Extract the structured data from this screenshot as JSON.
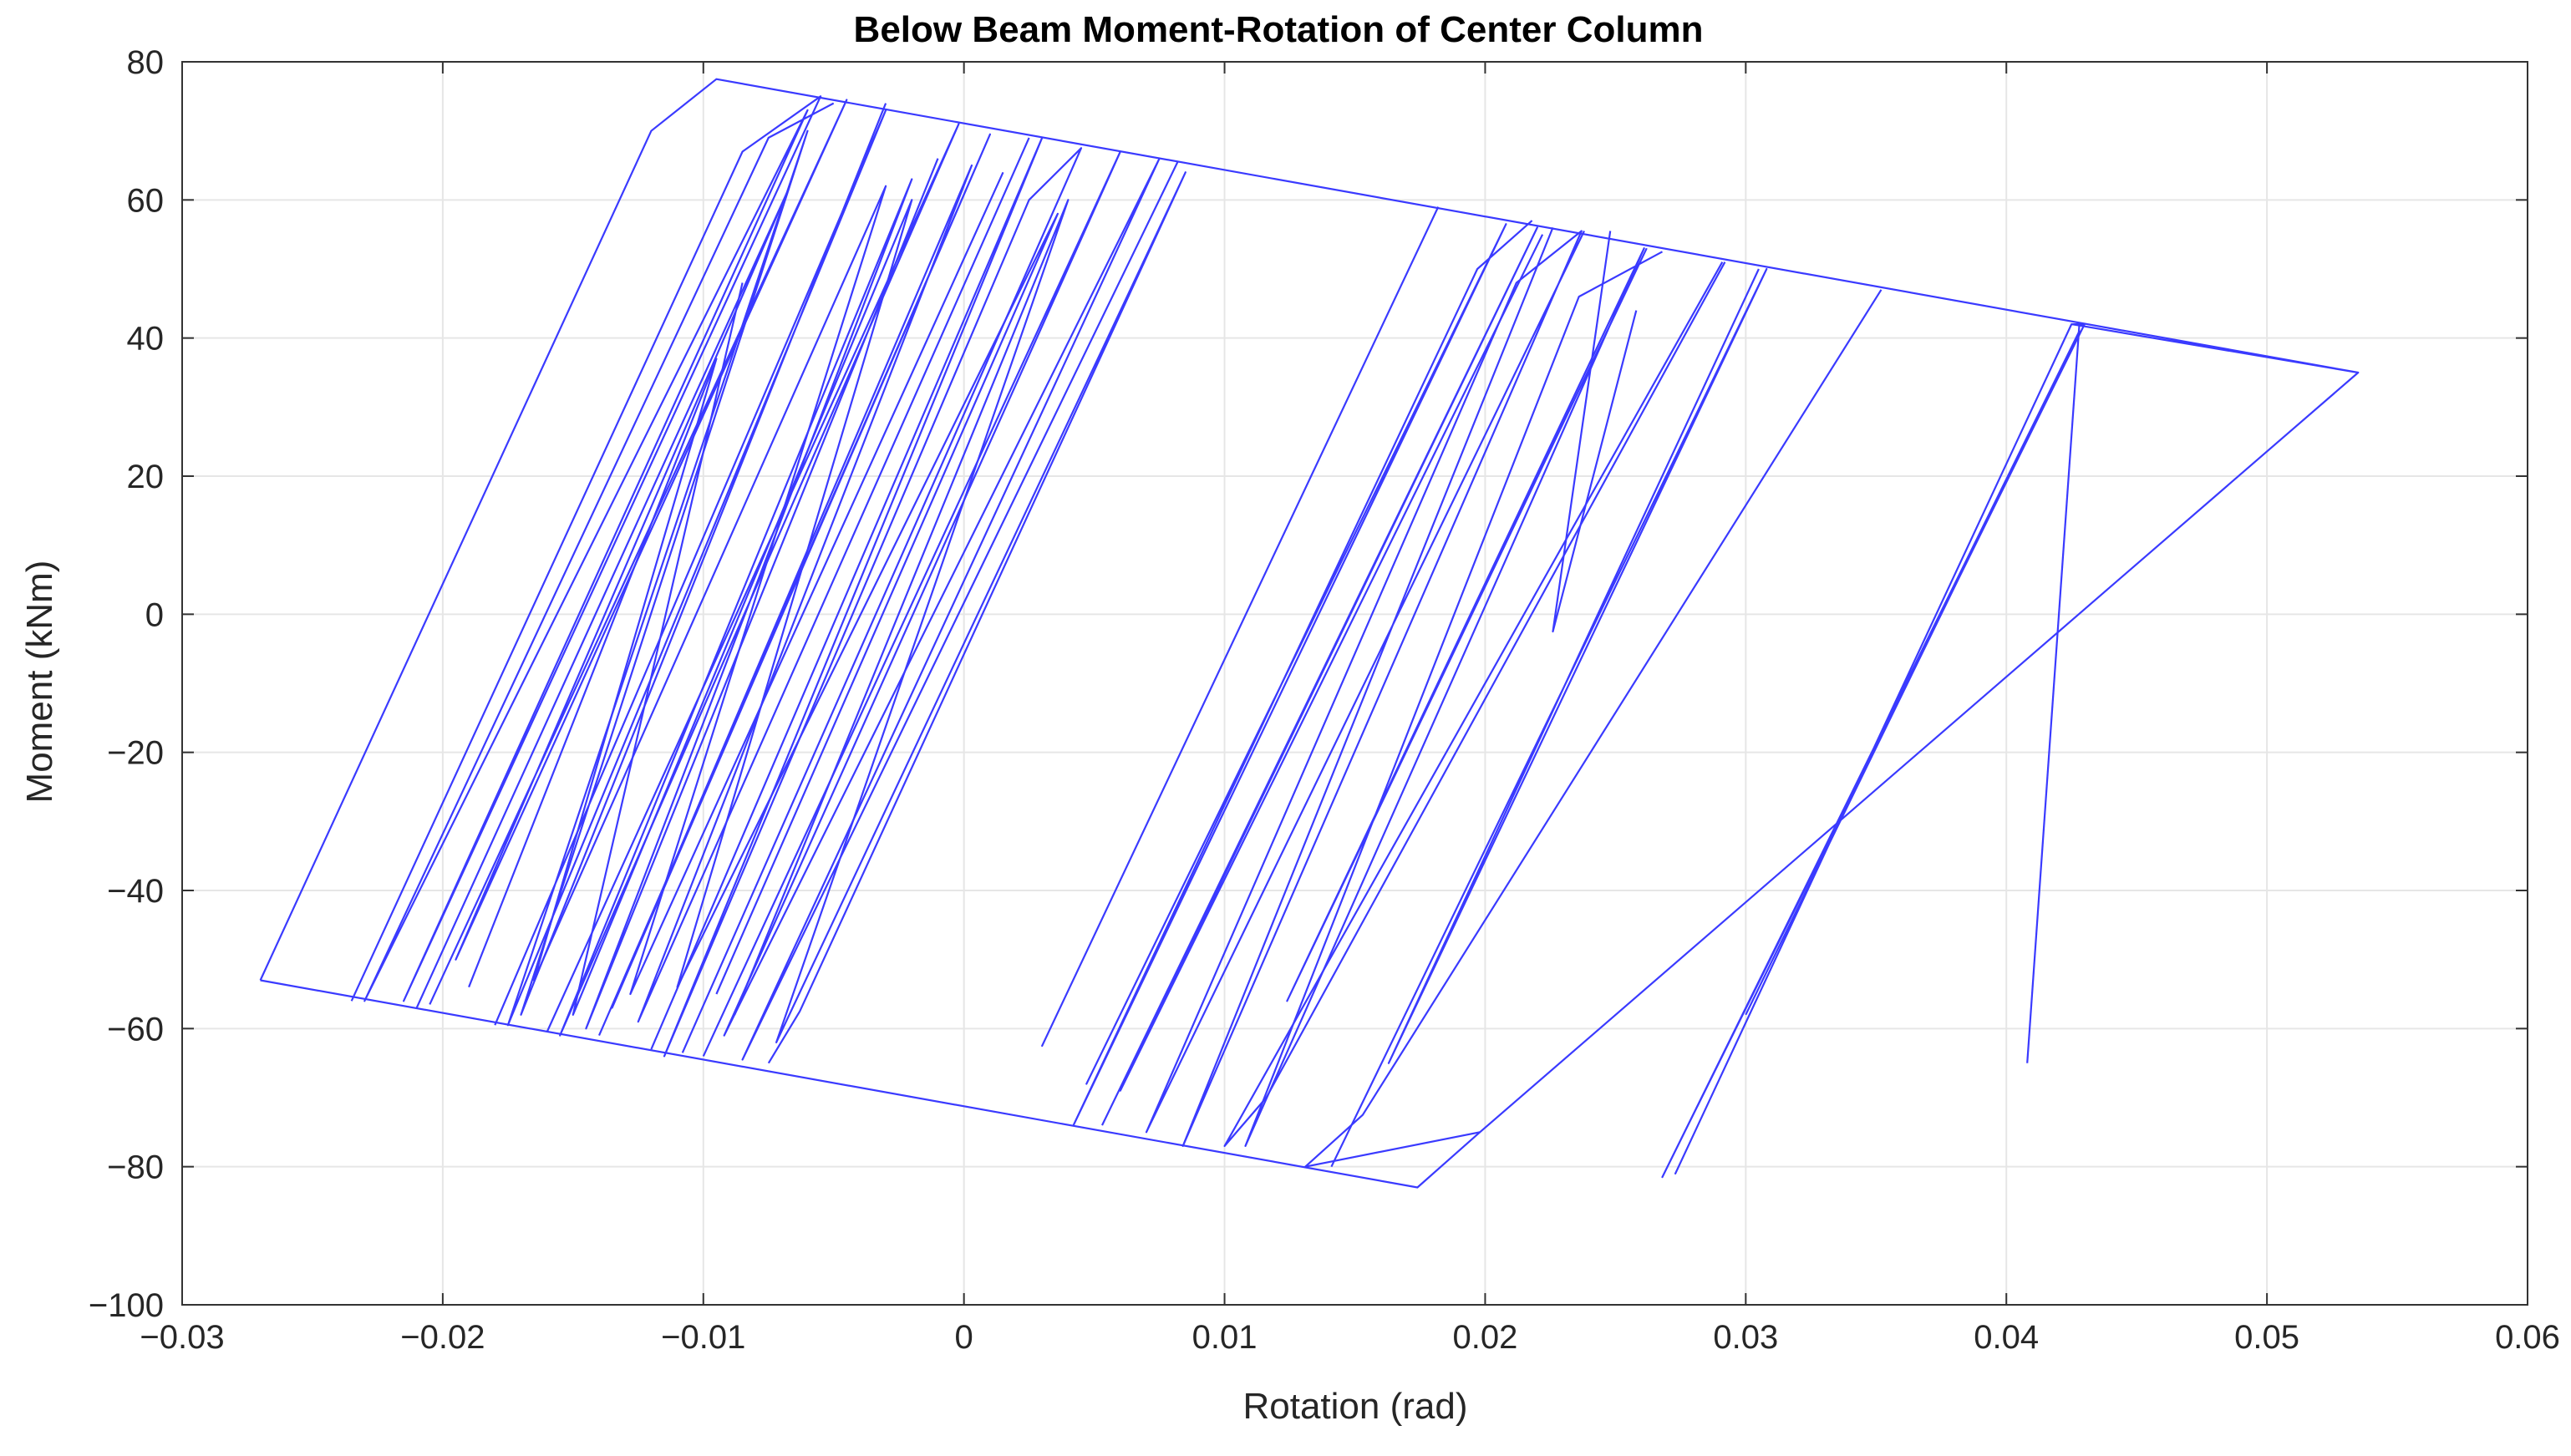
{
  "chart_data": {
    "type": "line",
    "title": "Below Beam Moment-Rotation of Center Column",
    "xlabel": "Rotation (rad)",
    "ylabel": "Moment (kNm)",
    "xlim": [
      -0.03,
      0.06
    ],
    "ylim": [
      -100,
      80
    ],
    "xticks": [
      -0.03,
      -0.02,
      -0.01,
      0,
      0.01,
      0.02,
      0.03,
      0.04,
      0.05,
      0.06
    ],
    "xtick_labels": [
      "−0.03",
      "−0.02",
      "−0.01",
      "0",
      "0.01",
      "0.02",
      "0.03",
      "0.04",
      "0.05",
      "0.06"
    ],
    "yticks": [
      -100,
      -80,
      -60,
      -40,
      -20,
      0,
      20,
      40,
      60,
      80
    ],
    "ytick_labels": [
      "−100",
      "−80",
      "−60",
      "−40",
      "−20",
      "0",
      "20",
      "40",
      "60",
      "80"
    ],
    "grid": true,
    "legend": "none",
    "line_color": "#3a3aff",
    "series": [
      {
        "values": [
          [
            -0.027,
            -53
          ],
          [
            -0.012,
            70
          ],
          [
            -0.0095,
            77.5
          ],
          [
            0.0535,
            35
          ],
          [
            0.0425,
            42
          ],
          [
            0.0273,
            -81
          ],
          [
            0.0425,
            42
          ],
          [
            0.043,
            42
          ],
          [
            0.0268,
            -81.5
          ],
          [
            0.0428,
            41
          ],
          [
            0.03,
            -58
          ]
        ]
      },
      {
        "values": [
          [
            0.0535,
            35
          ],
          [
            0.0198,
            -75
          ],
          [
            0.0174,
            -83
          ],
          [
            -0.027,
            -53
          ]
        ]
      },
      {
        "values": [
          [
            0.0408,
            -65
          ],
          [
            0.0428,
            42
          ]
        ]
      },
      {
        "values": [
          [
            0.0352,
            47
          ],
          [
            0.0153,
            -72.5
          ],
          [
            0.0131,
            -80
          ],
          [
            0.0198,
            -75
          ]
        ]
      },
      {
        "values": [
          [
            0.0305,
            50
          ],
          [
            0.0163,
            -65
          ],
          [
            0.0308,
            50
          ],
          [
            0.0141,
            -80
          ]
        ]
      },
      {
        "values": [
          [
            0.0292,
            51
          ],
          [
            0.0116,
            -70
          ],
          [
            0.01,
            -77
          ],
          [
            0.0291,
            51
          ]
        ]
      },
      {
        "values": [
          [
            0.0262,
            53
          ],
          [
            0.0124,
            -56
          ],
          [
            0.0261,
            53
          ],
          [
            0.0108,
            -77
          ],
          [
            0.0236,
            46
          ],
          [
            0.0268,
            52.5
          ]
        ]
      },
      {
        "values": [
          [
            0.0248,
            55.5
          ],
          [
            0.0226,
            -2.5
          ],
          [
            0.0258,
            44
          ]
        ]
      },
      {
        "values": [
          [
            0.0238,
            55.5
          ],
          [
            0.007,
            -75
          ],
          [
            0.0212,
            48
          ],
          [
            0.0237,
            55.5
          ],
          [
            0.0084,
            -77
          ],
          [
            0.0226,
            56
          ]
        ]
      },
      {
        "values": [
          [
            0.0222,
            55
          ],
          [
            0.006,
            -69
          ],
          [
            0.022,
            56
          ],
          [
            0.0053,
            -74
          ]
        ]
      },
      {
        "values": [
          [
            0.0208,
            56.5
          ],
          [
            0.0047,
            -68
          ],
          [
            0.0208,
            56.5
          ],
          [
            0.0042,
            -74
          ],
          [
            0.0197,
            50
          ],
          [
            0.0218,
            57
          ]
        ]
      },
      {
        "values": [
          [
            0.0182,
            59
          ],
          [
            0.003,
            -62.5
          ],
          [
            0.0182,
            59
          ]
        ]
      },
      {
        "values": [
          [
            -0.0235,
            -56
          ],
          [
            -0.0085,
            67
          ],
          [
            -0.0055,
            75
          ],
          [
            -0.0215,
            -56
          ],
          [
            -0.006,
            73
          ],
          [
            -0.023,
            -56
          ],
          [
            -0.0075,
            69
          ],
          [
            -0.005,
            74
          ]
        ]
      },
      {
        "values": [
          [
            -0.0205,
            -56.5
          ],
          [
            -0.0045,
            74.5
          ],
          [
            -0.0195,
            -50
          ],
          [
            -0.0068,
            61
          ],
          [
            -0.021,
            -57
          ]
        ]
      },
      {
        "values": [
          [
            -0.018,
            -59.5
          ],
          [
            -0.003,
            73
          ],
          [
            -0.0175,
            -59.5
          ],
          [
            -0.006,
            70
          ],
          [
            -0.017,
            -58
          ],
          [
            -0.003,
            74
          ]
        ]
      },
      {
        "values": [
          [
            -0.016,
            -60.5
          ],
          [
            -0.0002,
            71
          ],
          [
            -0.0155,
            -61
          ],
          [
            -0.002,
            63
          ],
          [
            -0.0145,
            -60
          ],
          [
            -0.001,
            66
          ]
        ]
      },
      {
        "values": [
          [
            -0.014,
            -61
          ],
          [
            0.001,
            69.5
          ],
          [
            -0.0135,
            -57
          ],
          [
            0.0003,
            65
          ],
          [
            -0.0125,
            -59
          ],
          [
            0.0025,
            69
          ]
        ]
      },
      {
        "values": [
          [
            -0.012,
            -63
          ],
          [
            0.003,
            69
          ],
          [
            -0.0115,
            -64
          ],
          [
            0.0025,
            60
          ],
          [
            0.0045,
            67.5
          ],
          [
            -0.0108,
            -63.5
          ]
        ]
      },
      {
        "values": [
          [
            -0.01,
            -64
          ],
          [
            0.006,
            67
          ],
          [
            -0.0092,
            -61
          ],
          [
            0.0075,
            66
          ],
          [
            -0.0085,
            -64.5
          ],
          [
            0.0082,
            65.5
          ]
        ]
      },
      {
        "values": [
          [
            -0.0075,
            -65
          ],
          [
            -0.0063,
            -57.5
          ],
          [
            0.0085,
            64
          ],
          [
            -0.0072,
            -62
          ],
          [
            0.004,
            60
          ],
          [
            -0.0088,
            -58
          ]
        ]
      },
      {
        "values": [
          [
            -0.0095,
            -55
          ],
          [
            0.0036,
            58
          ],
          [
            -0.011,
            -54
          ],
          [
            -0.002,
            60
          ],
          [
            -0.015,
            -58
          ],
          [
            -0.0085,
            48
          ]
        ]
      },
      {
        "values": [
          [
            -0.019,
            -54
          ],
          [
            -0.0095,
            37
          ],
          [
            -0.0165,
            -53
          ],
          [
            -0.003,
            62
          ],
          [
            -0.0128,
            -55
          ],
          [
            0.0015,
            64
          ]
        ]
      }
    ]
  }
}
